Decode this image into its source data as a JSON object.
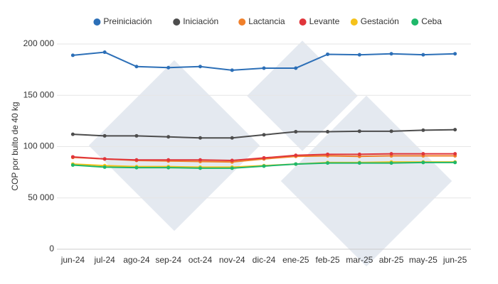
{
  "chart_data": {
    "type": "line",
    "y_label": "COP por bulto de 40 kg",
    "categories": [
      "jun-24",
      "jul-24",
      "ago-24",
      "sep-24",
      "oct-24",
      "nov-24",
      "dic-24",
      "ene-25",
      "feb-25",
      "mar-25",
      "abr-25",
      "may-25",
      "jun-25"
    ],
    "series": [
      {
        "name": "Preiniciación",
        "color": "#2c6fb7",
        "values": [
          189000,
          192000,
          178000,
          177000,
          178000,
          174500,
          176500,
          176500,
          190000,
          189500,
          190500,
          189500,
          190500
        ]
      },
      {
        "name": "Iniciación",
        "color": "#4d4d4d",
        "values": [
          112000,
          110500,
          110500,
          109500,
          108500,
          108500,
          111500,
          114500,
          114500,
          115000,
          115000,
          116000,
          116500
        ]
      },
      {
        "name": "Lactancia",
        "color": "#f07f2a",
        "values": [
          89500,
          88000,
          86500,
          86000,
          85500,
          85000,
          88000,
          90500,
          91000,
          90500,
          91000,
          91000,
          91000
        ]
      },
      {
        "name": "Levante",
        "color": "#e0353b",
        "values": [
          90000,
          88000,
          87000,
          87000,
          87000,
          86500,
          89000,
          91500,
          92500,
          92500,
          93000,
          93000,
          93000
        ]
      },
      {
        "name": "Gestación",
        "color": "#f5c21b",
        "values": [
          83000,
          81500,
          80500,
          80500,
          80000,
          80000,
          81500,
          83000,
          84500,
          84500,
          85000,
          85000,
          85000
        ]
      },
      {
        "name": "Ceba",
        "color": "#1fb86a",
        "values": [
          82000,
          80000,
          79500,
          79500,
          79000,
          79000,
          81000,
          83000,
          84000,
          84000,
          84000,
          84500,
          84500
        ]
      }
    ],
    "ylim": [
      0,
      200000
    ],
    "yticks": [
      0,
      {
        "value": 50000,
        "label": "50 000"
      },
      {
        "value": 100000,
        "label": "100 000"
      },
      {
        "value": 150000,
        "label": "150 000"
      },
      {
        "value": 200000,
        "label": "200 000"
      }
    ],
    "grid": true
  }
}
